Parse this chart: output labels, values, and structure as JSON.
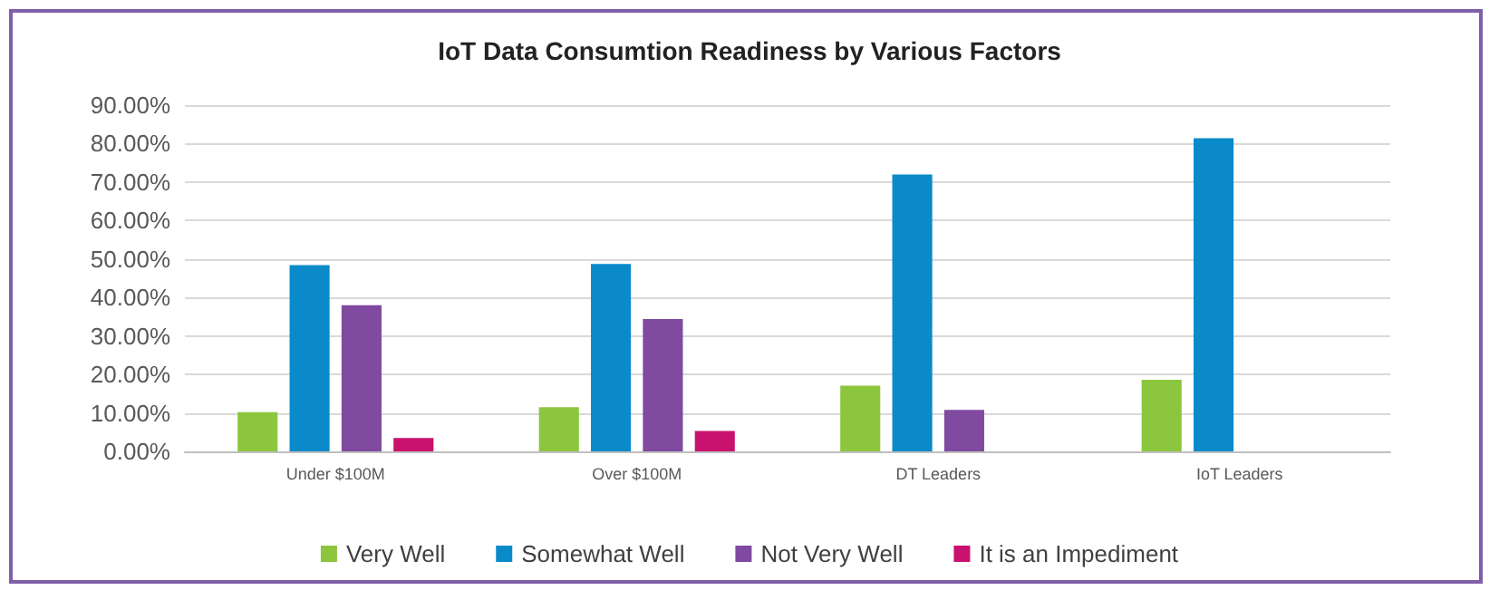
{
  "chart_data": {
    "type": "bar",
    "title": "IoT Data Consumtion Readiness by Various Factors",
    "categories": [
      "Under $100M",
      "Over $100M",
      "DT Leaders",
      "IoT Leaders"
    ],
    "series": [
      {
        "name": "Very Well",
        "color": "#8cc63f",
        "values": [
          10.2,
          11.5,
          17.1,
          18.6
        ]
      },
      {
        "name": "Somewhat Well",
        "color": "#0a8ac9",
        "values": [
          48.4,
          48.7,
          72.0,
          81.4
        ]
      },
      {
        "name": "Not Very Well",
        "color": "#7f4aa0",
        "values": [
          38.0,
          34.4,
          10.8,
          null
        ]
      },
      {
        "name": "It is an Impediment",
        "color": "#c8126e",
        "values": [
          3.5,
          5.3,
          null,
          null
        ]
      }
    ],
    "ylim": [
      0,
      90
    ],
    "yticks": [
      {
        "value": 0,
        "label": "0.00%"
      },
      {
        "value": 10,
        "label": "10.00%"
      },
      {
        "value": 20,
        "label": "20.00%"
      },
      {
        "value": 30,
        "label": "30.00%"
      },
      {
        "value": 40,
        "label": "40.00%"
      },
      {
        "value": 50,
        "label": "50.00%"
      },
      {
        "value": 60,
        "label": "60.00%"
      },
      {
        "value": 70,
        "label": "70.00%"
      },
      {
        "value": 80,
        "label": "80.00%"
      },
      {
        "value": 90,
        "label": "90.00%"
      }
    ],
    "grid": "y",
    "legend": "bottom"
  }
}
